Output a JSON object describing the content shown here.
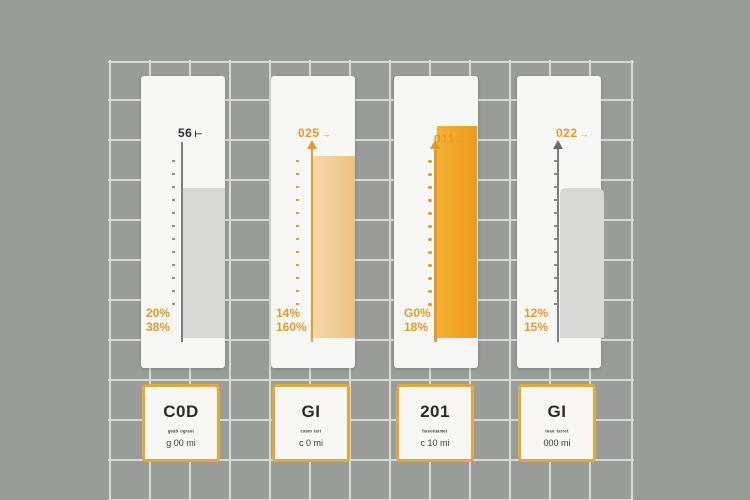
{
  "colors": {
    "background": "#9a9c99",
    "grid": "#d9d9d6",
    "panel": "#f7f7f6",
    "amber": "#e29a2d",
    "amber_light": "#f2cd93",
    "gray_fill": "#d8d8d6",
    "card_border": "#e3a83d"
  },
  "gauges": [
    {
      "top_label": "56",
      "bottom_labels": [
        "20%",
        "38%"
      ],
      "label_color": "#2f2f2f",
      "bottom_label_color": "#e29a2d",
      "fill_color": "#d8d8d6",
      "level": 0.51,
      "arrow_icon": "",
      "axis_style": "gray",
      "card": {
        "code": "C0D",
        "fine": "ᵍᵉᵃᵇ ᵒᵍʳᵃᵉᵗ",
        "detail": "g 00 mi"
      }
    },
    {
      "top_label": "025",
      "bottom_labels": [
        "14%",
        "160%"
      ],
      "label_color": "#e29a2d",
      "bottom_label_color": "#e29a2d",
      "fill_color": "#f2cd93",
      "level": 0.62,
      "arrow_icon": "arrow-up-icon",
      "axis_style": "amber",
      "card": {
        "code": "GI",
        "fine": "ᶜᵃᵉᵐ ᵗᵃʳᵗ",
        "detail": "c 0 mi"
      }
    },
    {
      "top_label": "011",
      "bottom_labels": [
        "G0%",
        "18%"
      ],
      "label_color": "#e29a2d",
      "bottom_label_color": "#e29a2d",
      "fill_color": "#efa126",
      "level": 0.72,
      "arrow_icon": "arrow-up-icon",
      "axis_style": "amber",
      "card": {
        "code": "201",
        "fine": "ʰᵃᵉᵒᵗᵘᵃᵐᵉᵗ",
        "detail": "c 10 mi"
      }
    },
    {
      "top_label": "022",
      "bottom_labels": [
        "12%",
        "15%"
      ],
      "label_color": "#e29a2d",
      "bottom_label_color": "#e29a2d",
      "fill_color": "#d8d8d6",
      "level": 0.51,
      "arrow_icon": "arrow-up-outline-icon",
      "axis_style": "gray",
      "card": {
        "code": "GI",
        "fine": "ᵗᵉᵃᵉ ᵗᵃʳʳᵉᵗ",
        "detail": "000 mi"
      }
    }
  ]
}
